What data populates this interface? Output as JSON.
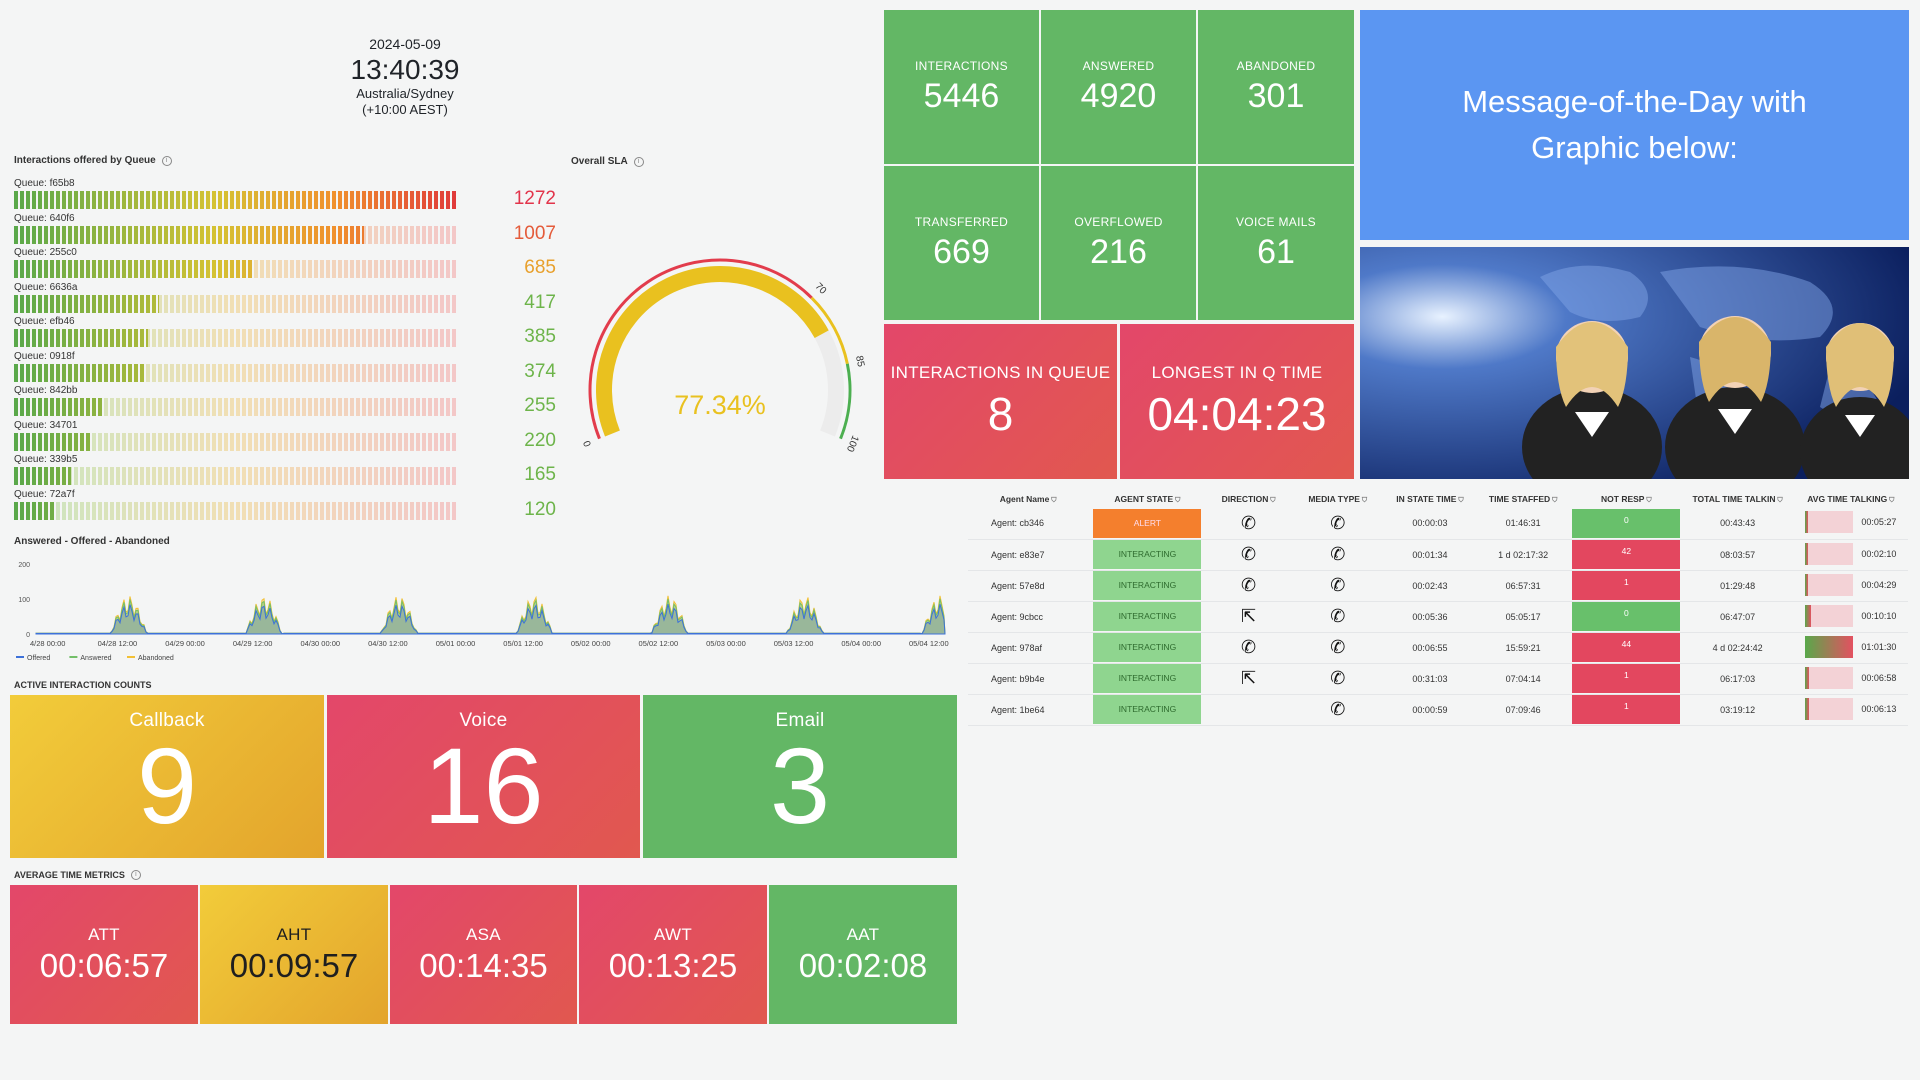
{
  "clock": {
    "date": "2024-05-09",
    "time": "13:40:39",
    "zone": "Australia/Sydney",
    "offset": "(+10:00 AEST)"
  },
  "queues_panel": {
    "title": "Interactions offered by Queue",
    "max": 1272,
    "items": [
      {
        "label": "Queue: f65b8",
        "value": 1272,
        "color": "#e2344a"
      },
      {
        "label": "Queue: 640f6",
        "value": 1007,
        "color": "#e45b3a"
      },
      {
        "label": "Queue: 255c0",
        "value": 685,
        "color": "#e8a02c"
      },
      {
        "label": "Queue: 6636a",
        "value": 417,
        "color": "#6db44a"
      },
      {
        "label": "Queue: efb46",
        "value": 385,
        "color": "#6db44a"
      },
      {
        "label": "Queue: 0918f",
        "value": 374,
        "color": "#6db44a"
      },
      {
        "label": "Queue: 842bb",
        "value": 255,
        "color": "#6db44a"
      },
      {
        "label": "Queue: 34701",
        "value": 220,
        "color": "#6db44a"
      },
      {
        "label": "Queue: 339b5",
        "value": 165,
        "color": "#6db44a"
      },
      {
        "label": "Queue: 72a7f",
        "value": 120,
        "color": "#6db44a"
      }
    ]
  },
  "sla_panel": {
    "title": "Overall SLA",
    "value_text": "77.34%",
    "value": 77.34,
    "min": 0,
    "max": 100,
    "thresholds": [
      70,
      85
    ],
    "tick_labels": [
      "0",
      "70",
      "85",
      "100"
    ],
    "color": "#e9c11f"
  },
  "timeseries_panel": {
    "title": "Answered - Offered - Abandoned",
    "y_ticks": [
      "200",
      "100",
      "0"
    ],
    "x_ticks": [
      "4/28 00:00",
      "04/28 12:00",
      "04/29 00:00",
      "04/29 12:00",
      "04/30 00:00",
      "04/30 12:00",
      "05/01 00:00",
      "05/01 12:00",
      "05/02 00:00",
      "05/02 12:00",
      "05/03 00:00",
      "05/03 12:00",
      "05/04 00:00",
      "05/04 12:00"
    ],
    "legend": [
      {
        "name": "Offered",
        "color": "#3d71d9"
      },
      {
        "name": "Answered",
        "color": "#73bf69"
      },
      {
        "name": "Abandoned",
        "color": "#f2c035"
      }
    ]
  },
  "stats": {
    "interactions": {
      "label": "INTERACTIONS",
      "value": "5446"
    },
    "answered": {
      "label": "ANSWERED",
      "value": "4920"
    },
    "abandoned": {
      "label": "ABANDONED",
      "value": "301"
    },
    "transferred": {
      "label": "TRANSFERRED",
      "value": "669"
    },
    "overflowed": {
      "label": "OVERFLOWED",
      "value": "216"
    },
    "voicemails": {
      "label": "VOICE MAILS",
      "value": "61"
    },
    "in_queue": {
      "label": "INTERACTIONS IN QUEUE",
      "value": "8"
    },
    "longest": {
      "label": "LONGEST IN Q TIME",
      "value": "04:04:23"
    }
  },
  "motd": {
    "line1": "Message-of-the-Day with",
    "line2": "Graphic below:"
  },
  "active": {
    "title": "ACTIVE INTERACTION COUNTS",
    "callback": {
      "label": "Callback",
      "value": "9"
    },
    "voice": {
      "label": "Voice",
      "value": "16"
    },
    "email": {
      "label": "Email",
      "value": "3"
    }
  },
  "avg": {
    "title": "AVERAGE TIME METRICS",
    "att": {
      "label": "ATT",
      "value": "00:06:57"
    },
    "aht": {
      "label": "AHT",
      "value": "00:09:57"
    },
    "asa": {
      "label": "ASA",
      "value": "00:14:35"
    },
    "awt": {
      "label": "AWT",
      "value": "00:13:25"
    },
    "aat": {
      "label": "AAT",
      "value": "00:02:08"
    }
  },
  "agents": {
    "columns": [
      "Agent Name",
      "AGENT STATE",
      "DIRECTION",
      "MEDIA TYPE",
      "IN STATE TIME",
      "TIME STAFFED",
      "NOT RESP",
      "TOTAL TIME TALKIN",
      "AVG TIME TALKING"
    ],
    "rows": [
      {
        "name": "Agent: cb346",
        "state": "ALERT",
        "direction": "phone-icon",
        "media": "phone-icon",
        "in_state": "00:00:03",
        "staffed": "01:46:31",
        "not_resp": "0",
        "total_talk": "00:43:43",
        "avg_talk": "00:05:27",
        "avg_level": 0.05
      },
      {
        "name": "Agent: e83e7",
        "state": "INTERACTING",
        "direction": "phone-icon",
        "media": "phone-icon",
        "in_state": "00:01:34",
        "staffed": "1 d 02:17:32",
        "not_resp": "42",
        "total_talk": "08:03:57",
        "avg_talk": "00:02:10",
        "avg_level": 0.05
      },
      {
        "name": "Agent: 57e8d",
        "state": "INTERACTING",
        "direction": "phone-icon",
        "media": "phone-icon",
        "in_state": "00:02:43",
        "staffed": "06:57:31",
        "not_resp": "1",
        "total_talk": "01:29:48",
        "avg_talk": "00:04:29",
        "avg_level": 0.05
      },
      {
        "name": "Agent: 9cbcc",
        "state": "INTERACTING",
        "direction": "share-icon",
        "media": "phone-icon",
        "in_state": "00:05:36",
        "staffed": "05:05:17",
        "not_resp": "0",
        "total_talk": "06:47:07",
        "avg_talk": "00:10:10",
        "avg_level": 0.12
      },
      {
        "name": "Agent: 978af",
        "state": "INTERACTING",
        "direction": "phone-icon",
        "media": "phone-icon",
        "in_state": "00:06:55",
        "staffed": "15:59:21",
        "not_resp": "44",
        "total_talk": "4 d 02:24:42",
        "avg_talk": "01:01:30",
        "avg_level": 1.0
      },
      {
        "name": "Agent: b9b4e",
        "state": "INTERACTING",
        "direction": "share-icon",
        "media": "phone-icon",
        "in_state": "00:31:03",
        "staffed": "07:04:14",
        "not_resp": "1",
        "total_talk": "06:17:03",
        "avg_talk": "00:06:58",
        "avg_level": 0.08
      },
      {
        "name": "Agent: 1be64",
        "state": "INTERACTING",
        "direction": "",
        "media": "callback-icon",
        "in_state": "00:00:59",
        "staffed": "07:09:46",
        "not_resp": "1",
        "total_talk": "03:19:12",
        "avg_talk": "00:06:13",
        "avg_level": 0.07
      }
    ]
  }
}
